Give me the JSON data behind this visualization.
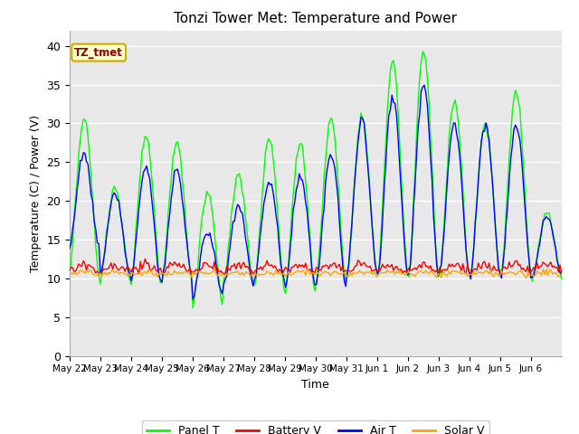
{
  "title": "Tonzi Tower Met: Temperature and Power",
  "ylabel": "Temperature (C) / Power (V)",
  "xlabel": "Time",
  "annotation": "TZ_tmet",
  "ylim": [
    0,
    42
  ],
  "yticks": [
    0,
    5,
    10,
    15,
    20,
    25,
    30,
    35,
    40
  ],
  "x_labels": [
    "May 22",
    "May 23",
    "May 24",
    "May 25",
    "May 26",
    "May 27",
    "May 28",
    "May 29",
    "May 30",
    "May 31",
    "Jun 1",
    "Jun 2",
    "Jun 3",
    "Jun 4",
    "Jun 5",
    "Jun 6"
  ],
  "background_color": "#e8e8e8",
  "plot_bg": "#e8e8e8",
  "panel_color": "#00ff00",
  "battery_color": "#ff0000",
  "air_color": "#0000ff",
  "solar_color": "#ffa500",
  "legend_labels": [
    "Panel T",
    "Battery V",
    "Air T",
    "Solar V"
  ],
  "figsize": [
    6.4,
    4.8
  ],
  "dpi": 100
}
